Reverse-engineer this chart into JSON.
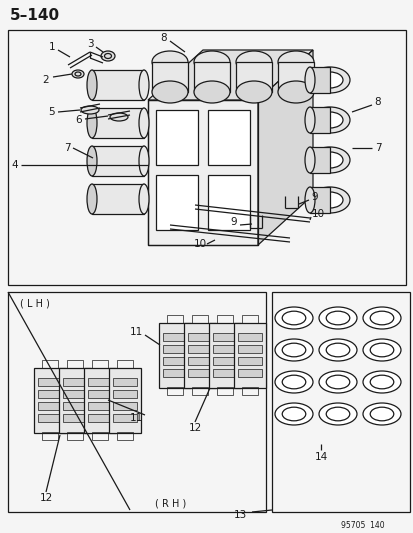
{
  "title": "5–140",
  "bg_color": "#f5f5f5",
  "line_color": "#1a1a1a",
  "watermark": "95705  140",
  "figsize": [
    4.14,
    5.33
  ],
  "dpi": 100
}
